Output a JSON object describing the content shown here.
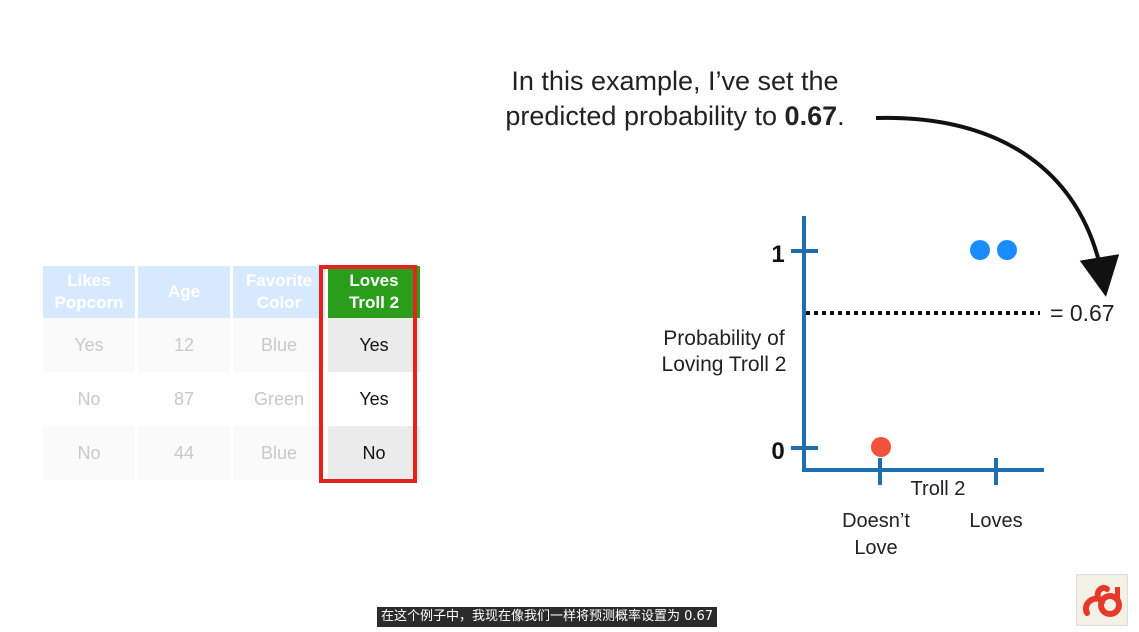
{
  "annotation": {
    "line1": "In this example, I’ve set the",
    "line2_prefix": "predicted probability to ",
    "line2_bold": "0.67",
    "line2_suffix": "."
  },
  "table": {
    "headers": [
      "Likes\nPopcorn",
      "Age",
      "Favorite\nColor",
      "Loves\nTroll 2"
    ],
    "rows": [
      [
        "Yes",
        "12",
        "Blue",
        "Yes"
      ],
      [
        "No",
        "87",
        "Green",
        "Yes"
      ],
      [
        "No",
        "44",
        "Blue",
        "No"
      ]
    ]
  },
  "plot": {
    "y_label_line1": "Probability of",
    "y_label_line2": "Loving Troll 2",
    "x_label": "Troll 2",
    "y_tick_1": "1",
    "y_tick_0": "0",
    "x_tick_left_line1": "Doesn’t",
    "x_tick_left_line2": "Love",
    "x_tick_right": "Loves",
    "threshold_label": "= 0.67",
    "colors": {
      "axis": "#1f6fb0",
      "blue_point": "#1a8cff",
      "red_point": "#f0503c"
    }
  },
  "subtitle": "在这个例子中，我现在像我们一样将预测概率设置为 0.67",
  "logo": {
    "icon": "statquest-logo-icon"
  }
}
